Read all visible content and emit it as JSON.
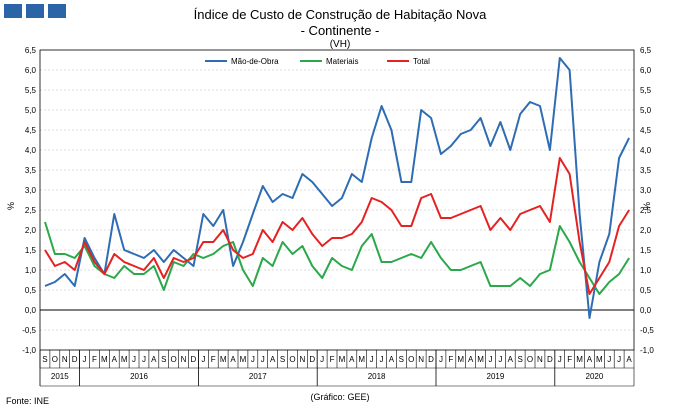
{
  "header": {
    "title_line1": "Índice de Custo de Construção de Habitação Nova",
    "title_line2": "- Continente -",
    "unit": "(VH)"
  },
  "footer": {
    "source": "Fonte: INE",
    "credit": "(Gráfico: GEE)"
  },
  "chart_data": {
    "type": "line",
    "ylabel": "%",
    "ylim": [
      -1.0,
      6.5
    ],
    "ytick_step": 0.5,
    "yticks_left": [
      "-1,0",
      "-0,5",
      "0,0",
      "0,5",
      "1,0",
      "1,5",
      "2,0",
      "2,5",
      "3,0",
      "3,5",
      "4,0",
      "4,5",
      "5,0",
      "5,5",
      "6,0",
      "6,5"
    ],
    "yticks_right": [
      "-1,0",
      "-0,5",
      "0,0",
      "0,5",
      "1,0",
      "1,5",
      "2,0",
      "2,5",
      "3,0",
      "3,5",
      "4,0",
      "4,5",
      "5,0",
      "5,5",
      "6,0",
      "6,5"
    ],
    "grid": true,
    "legend_position": "top-center",
    "x_month_labels": [
      "S",
      "O",
      "N",
      "D",
      "J",
      "F",
      "M",
      "A",
      "M",
      "J",
      "J",
      "A",
      "S",
      "O",
      "N",
      "D",
      "J",
      "F",
      "M",
      "A",
      "M",
      "J",
      "J",
      "A",
      "S",
      "O",
      "N",
      "D",
      "J",
      "F",
      "M",
      "A",
      "M",
      "J",
      "J",
      "A",
      "S",
      "O",
      "N",
      "D",
      "J",
      "F",
      "M",
      "A",
      "M",
      "J",
      "J",
      "A",
      "S",
      "O",
      "N",
      "D",
      "J",
      "F",
      "M",
      "A",
      "M",
      "J",
      "J",
      "A"
    ],
    "x_year_groups": [
      {
        "label": "2015",
        "start": 0,
        "count": 4
      },
      {
        "label": "2016",
        "start": 4,
        "count": 12
      },
      {
        "label": "2017",
        "start": 16,
        "count": 12
      },
      {
        "label": "2018",
        "start": 28,
        "count": 12
      },
      {
        "label": "2019",
        "start": 40,
        "count": 12
      },
      {
        "label": "2020",
        "start": 52,
        "count": 8
      }
    ],
    "series": [
      {
        "name": "Mão-de-Obra",
        "color": "#2e6db4",
        "values": [
          0.6,
          0.7,
          0.9,
          0.6,
          1.8,
          1.3,
          0.9,
          2.4,
          1.5,
          1.4,
          1.3,
          1.5,
          1.2,
          1.5,
          1.3,
          1.1,
          2.4,
          2.1,
          2.5,
          1.1,
          1.7,
          2.4,
          3.1,
          2.7,
          2.9,
          2.8,
          3.4,
          3.2,
          2.9,
          2.6,
          2.8,
          3.4,
          3.2,
          4.3,
          5.1,
          4.5,
          3.2,
          3.2,
          5.0,
          4.8,
          3.9,
          4.1,
          4.4,
          4.5,
          4.8,
          4.1,
          4.7,
          4.0,
          4.9,
          5.2,
          5.1,
          4.0,
          6.3,
          6.0,
          2.4,
          -0.2,
          1.2,
          1.9,
          3.8,
          4.3
        ]
      },
      {
        "name": "Materiais",
        "color": "#2aa84a",
        "values": [
          2.2,
          1.4,
          1.4,
          1.3,
          1.6,
          1.1,
          0.9,
          0.8,
          1.1,
          0.9,
          0.9,
          1.1,
          0.5,
          1.2,
          1.1,
          1.4,
          1.3,
          1.4,
          1.6,
          1.7,
          1.0,
          0.6,
          1.3,
          1.1,
          1.7,
          1.4,
          1.6,
          1.1,
          0.8,
          1.3,
          1.1,
          1.0,
          1.6,
          1.9,
          1.2,
          1.2,
          1.3,
          1.4,
          1.3,
          1.7,
          1.3,
          1.0,
          1.0,
          1.1,
          1.2,
          0.6,
          0.6,
          0.6,
          0.8,
          0.6,
          0.9,
          1.0,
          2.1,
          1.7,
          1.2,
          0.8,
          0.4,
          0.7,
          0.9,
          1.3
        ]
      },
      {
        "name": "Total",
        "color": "#e52222",
        "values": [
          1.5,
          1.1,
          1.2,
          1.0,
          1.7,
          1.2,
          0.9,
          1.4,
          1.2,
          1.1,
          1.0,
          1.3,
          0.8,
          1.3,
          1.2,
          1.3,
          1.7,
          1.7,
          2.0,
          1.5,
          1.3,
          1.4,
          2.0,
          1.7,
          2.2,
          2.0,
          2.3,
          1.9,
          1.6,
          1.8,
          1.8,
          1.9,
          2.2,
          2.8,
          2.7,
          2.5,
          2.1,
          2.1,
          2.8,
          2.9,
          2.3,
          2.3,
          2.4,
          2.5,
          2.6,
          2.0,
          2.3,
          2.0,
          2.4,
          2.5,
          2.6,
          2.2,
          3.8,
          3.4,
          1.7,
          0.4,
          0.8,
          1.2,
          2.1,
          2.5
        ]
      }
    ]
  }
}
